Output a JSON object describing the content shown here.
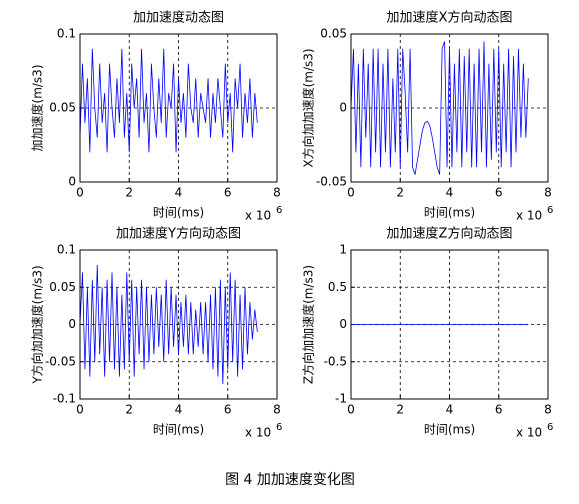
{
  "chart_data": [
    {
      "type": "line",
      "title": "加加速度动态图",
      "xlabel": "时间(ms)",
      "ylabel": "加加速度(m/s3)",
      "x_multiplier": "x 10",
      "x_exponent": "6",
      "color": "#0000ff",
      "grid": true,
      "xlim": [
        0,
        8
      ],
      "xticks": [
        0,
        2,
        4,
        6,
        8
      ],
      "ylim": [
        0,
        0.1
      ],
      "yticks": [
        0,
        0.05,
        0.1
      ],
      "x": [
        0,
        0.1,
        0.2,
        0.3,
        0.4,
        0.5,
        0.6,
        0.7,
        0.8,
        0.9,
        1.0,
        1.1,
        1.2,
        1.3,
        1.4,
        1.5,
        1.6,
        1.7,
        1.8,
        1.9,
        2.0,
        2.1,
        2.2,
        2.3,
        2.4,
        2.5,
        2.6,
        2.7,
        2.8,
        2.9,
        3.0,
        3.1,
        3.2,
        3.3,
        3.4,
        3.5,
        3.6,
        3.7,
        3.8,
        3.9,
        4.0,
        4.1,
        4.2,
        4.3,
        4.4,
        4.5,
        4.6,
        4.7,
        4.8,
        4.9,
        5.0,
        5.1,
        5.2,
        5.3,
        5.4,
        5.5,
        5.6,
        5.7,
        5.8,
        5.9,
        6.0,
        6.1,
        6.2,
        6.3,
        6.4,
        6.5,
        6.6,
        6.7,
        6.8,
        6.9,
        7.0,
        7.1,
        7.2
      ],
      "values": [
        0.03,
        0.08,
        0.04,
        0.07,
        0.02,
        0.09,
        0.05,
        0.03,
        0.08,
        0.04,
        0.06,
        0.02,
        0.08,
        0.05,
        0.03,
        0.07,
        0.04,
        0.09,
        0.03,
        0.06,
        0.02,
        0.08,
        0.05,
        0.07,
        0.03,
        0.09,
        0.04,
        0.06,
        0.02,
        0.08,
        0.05,
        0.03,
        0.07,
        0.04,
        0.09,
        0.03,
        0.06,
        0.05,
        0.08,
        0.02,
        0.07,
        0.04,
        0.06,
        0.03,
        0.08,
        0.05,
        0.04,
        0.07,
        0.03,
        0.06,
        0.05,
        0.04,
        0.07,
        0.03,
        0.06,
        0.04,
        0.07,
        0.05,
        0.03,
        0.08,
        0.04,
        0.06,
        0.02,
        0.07,
        0.05,
        0.08,
        0.03,
        0.06,
        0.04,
        0.07,
        0.03,
        0.06,
        0.04
      ]
    },
    {
      "type": "line",
      "title": "加加速度X方向动态图",
      "xlabel": "时间(ms)",
      "ylabel": "X方向加加速度(m/s3)",
      "x_multiplier": "x 10",
      "x_exponent": "6",
      "color": "#0000ff",
      "grid": true,
      "xlim": [
        0,
        8
      ],
      "xticks": [
        0,
        2,
        4,
        6,
        8
      ],
      "ylim": [
        -0.05,
        0.05
      ],
      "yticks": [
        -0.05,
        0,
        0.05
      ],
      "x": [
        0,
        0.1,
        0.2,
        0.3,
        0.4,
        0.5,
        0.6,
        0.7,
        0.8,
        0.9,
        1.0,
        1.1,
        1.2,
        1.3,
        1.4,
        1.5,
        1.6,
        1.7,
        1.8,
        1.9,
        2.0,
        2.1,
        2.2,
        2.3,
        2.4,
        2.5,
        2.6,
        2.7,
        2.8,
        2.9,
        3.0,
        3.1,
        3.2,
        3.3,
        3.4,
        3.5,
        3.6,
        3.7,
        3.8,
        3.9,
        4.0,
        4.1,
        4.2,
        4.3,
        4.4,
        4.5,
        4.6,
        4.7,
        4.8,
        4.9,
        5.0,
        5.1,
        5.2,
        5.3,
        5.4,
        5.5,
        5.6,
        5.7,
        5.8,
        5.9,
        6.0,
        6.1,
        6.2,
        6.3,
        6.4,
        6.5,
        6.6,
        6.7,
        6.8,
        6.9,
        7.0,
        7.1,
        7.2
      ],
      "values": [
        0.0,
        0.04,
        -0.03,
        0.03,
        -0.04,
        0.04,
        -0.02,
        0.03,
        -0.04,
        0.04,
        -0.03,
        0.04,
        -0.04,
        0.03,
        -0.03,
        0.04,
        -0.04,
        0.02,
        -0.03,
        0.04,
        -0.04,
        0.04,
        0.01,
        -0.03,
        0.04,
        -0.04,
        -0.045,
        -0.035,
        -0.025,
        -0.015,
        -0.01,
        -0.009,
        -0.012,
        -0.02,
        -0.03,
        -0.04,
        -0.045,
        0.04,
        0.045,
        -0.04,
        0.04,
        -0.04,
        0.03,
        -0.03,
        0.04,
        -0.04,
        0.035,
        -0.03,
        0.04,
        -0.04,
        0.03,
        -0.04,
        0.04,
        -0.03,
        0.045,
        -0.04,
        0.03,
        -0.035,
        0.04,
        -0.03,
        0.04,
        -0.04,
        0.03,
        -0.03,
        0.04,
        -0.04,
        0.035,
        -0.03,
        0.04,
        -0.02,
        0.03,
        -0.02,
        0.02
      ]
    },
    {
      "type": "line",
      "title": "加加速度Y方向动态图",
      "xlabel": "时间(ms)",
      "ylabel": "Y方向加加速度(m/s3)",
      "x_multiplier": "x 10",
      "x_exponent": "6",
      "color": "#0000ff",
      "grid": true,
      "xlim": [
        0,
        8
      ],
      "xticks": [
        0,
        2,
        4,
        6,
        8
      ],
      "ylim": [
        -0.1,
        0.1
      ],
      "yticks": [
        -0.1,
        -0.05,
        0,
        0.05,
        0.1
      ],
      "x": [
        0,
        0.1,
        0.2,
        0.3,
        0.4,
        0.5,
        0.6,
        0.7,
        0.8,
        0.9,
        1.0,
        1.1,
        1.2,
        1.3,
        1.4,
        1.5,
        1.6,
        1.7,
        1.8,
        1.9,
        2.0,
        2.1,
        2.2,
        2.3,
        2.4,
        2.5,
        2.6,
        2.7,
        2.8,
        2.9,
        3.0,
        3.1,
        3.2,
        3.3,
        3.4,
        3.5,
        3.6,
        3.7,
        3.8,
        3.9,
        4.0,
        4.1,
        4.2,
        4.3,
        4.4,
        4.5,
        4.6,
        4.7,
        4.8,
        4.9,
        5.0,
        5.1,
        5.2,
        5.3,
        5.4,
        5.5,
        5.6,
        5.7,
        5.8,
        5.9,
        6.0,
        6.1,
        6.2,
        6.3,
        6.4,
        6.5,
        6.6,
        6.7,
        6.8,
        6.9,
        7.0,
        7.1,
        7.2
      ],
      "values": [
        0.0,
        0.07,
        -0.06,
        0.05,
        -0.07,
        0.06,
        -0.05,
        0.08,
        -0.04,
        0.05,
        -0.07,
        0.06,
        -0.05,
        0.07,
        -0.06,
        0.05,
        -0.07,
        0.04,
        -0.06,
        0.07,
        -0.05,
        0.06,
        -0.07,
        0.05,
        -0.04,
        0.06,
        -0.06,
        0.05,
        -0.05,
        0.04,
        -0.04,
        0.05,
        -0.03,
        0.04,
        -0.05,
        0.06,
        -0.04,
        0.05,
        -0.03,
        0.04,
        -0.04,
        0.03,
        -0.03,
        0.04,
        -0.04,
        0.03,
        -0.04,
        0.02,
        -0.03,
        0.03,
        -0.04,
        0.03,
        -0.05,
        0.04,
        -0.06,
        0.05,
        -0.07,
        0.06,
        -0.08,
        0.05,
        -0.06,
        0.07,
        -0.05,
        0.06,
        -0.07,
        0.04,
        -0.06,
        0.05,
        -0.04,
        0.03,
        -0.02,
        0.02,
        -0.01
      ]
    },
    {
      "type": "line",
      "title": "加加速度Z方向动态图",
      "xlabel": "时间(ms)",
      "ylabel": "Z方向加加速度(m/s3)",
      "x_multiplier": "x 10",
      "x_exponent": "6",
      "color": "#0000ff",
      "grid": true,
      "xlim": [
        0,
        8
      ],
      "xticks": [
        0,
        2,
        4,
        6,
        8
      ],
      "ylim": [
        -1,
        1
      ],
      "yticks": [
        -1,
        -0.5,
        0,
        0.5,
        1
      ],
      "x": [
        0,
        0.1,
        0.2,
        0.3,
        0.4,
        0.5,
        0.6,
        0.7,
        0.8,
        0.9,
        1.0,
        1.1,
        1.2,
        1.3,
        1.4,
        1.5,
        1.6,
        1.7,
        1.8,
        1.9,
        2.0,
        2.1,
        2.2,
        2.3,
        2.4,
        2.5,
        2.6,
        2.7,
        2.8,
        2.9,
        3.0,
        3.1,
        3.2,
        3.3,
        3.4,
        3.5,
        3.6,
        3.7,
        3.8,
        3.9,
        4.0,
        4.1,
        4.2,
        4.3,
        4.4,
        4.5,
        4.6,
        4.7,
        4.8,
        4.9,
        5.0,
        5.1,
        5.2,
        5.3,
        5.4,
        5.5,
        5.6,
        5.7,
        5.8,
        5.9,
        6.0,
        6.1,
        6.2,
        6.3,
        6.4,
        6.5,
        6.6,
        6.7,
        6.8,
        6.9,
        7.0,
        7.1,
        7.2
      ],
      "values": [
        0,
        0,
        0,
        0,
        0,
        0,
        0,
        0,
        0,
        0,
        0,
        0,
        0,
        0,
        0,
        0,
        0,
        0,
        0,
        0,
        0,
        0,
        0,
        0,
        0,
        0,
        0,
        0,
        0,
        0,
        0,
        0,
        0,
        0,
        0,
        0,
        0,
        0,
        0,
        0,
        0,
        0,
        0,
        0,
        0,
        0,
        0,
        0,
        0,
        0,
        0,
        0,
        0,
        0,
        0,
        0,
        0,
        0,
        0,
        0,
        0,
        0,
        0,
        0,
        0,
        0,
        0,
        0,
        0,
        0,
        0,
        0,
        0
      ]
    }
  ],
  "caption": "图 4  加加速度变化图"
}
